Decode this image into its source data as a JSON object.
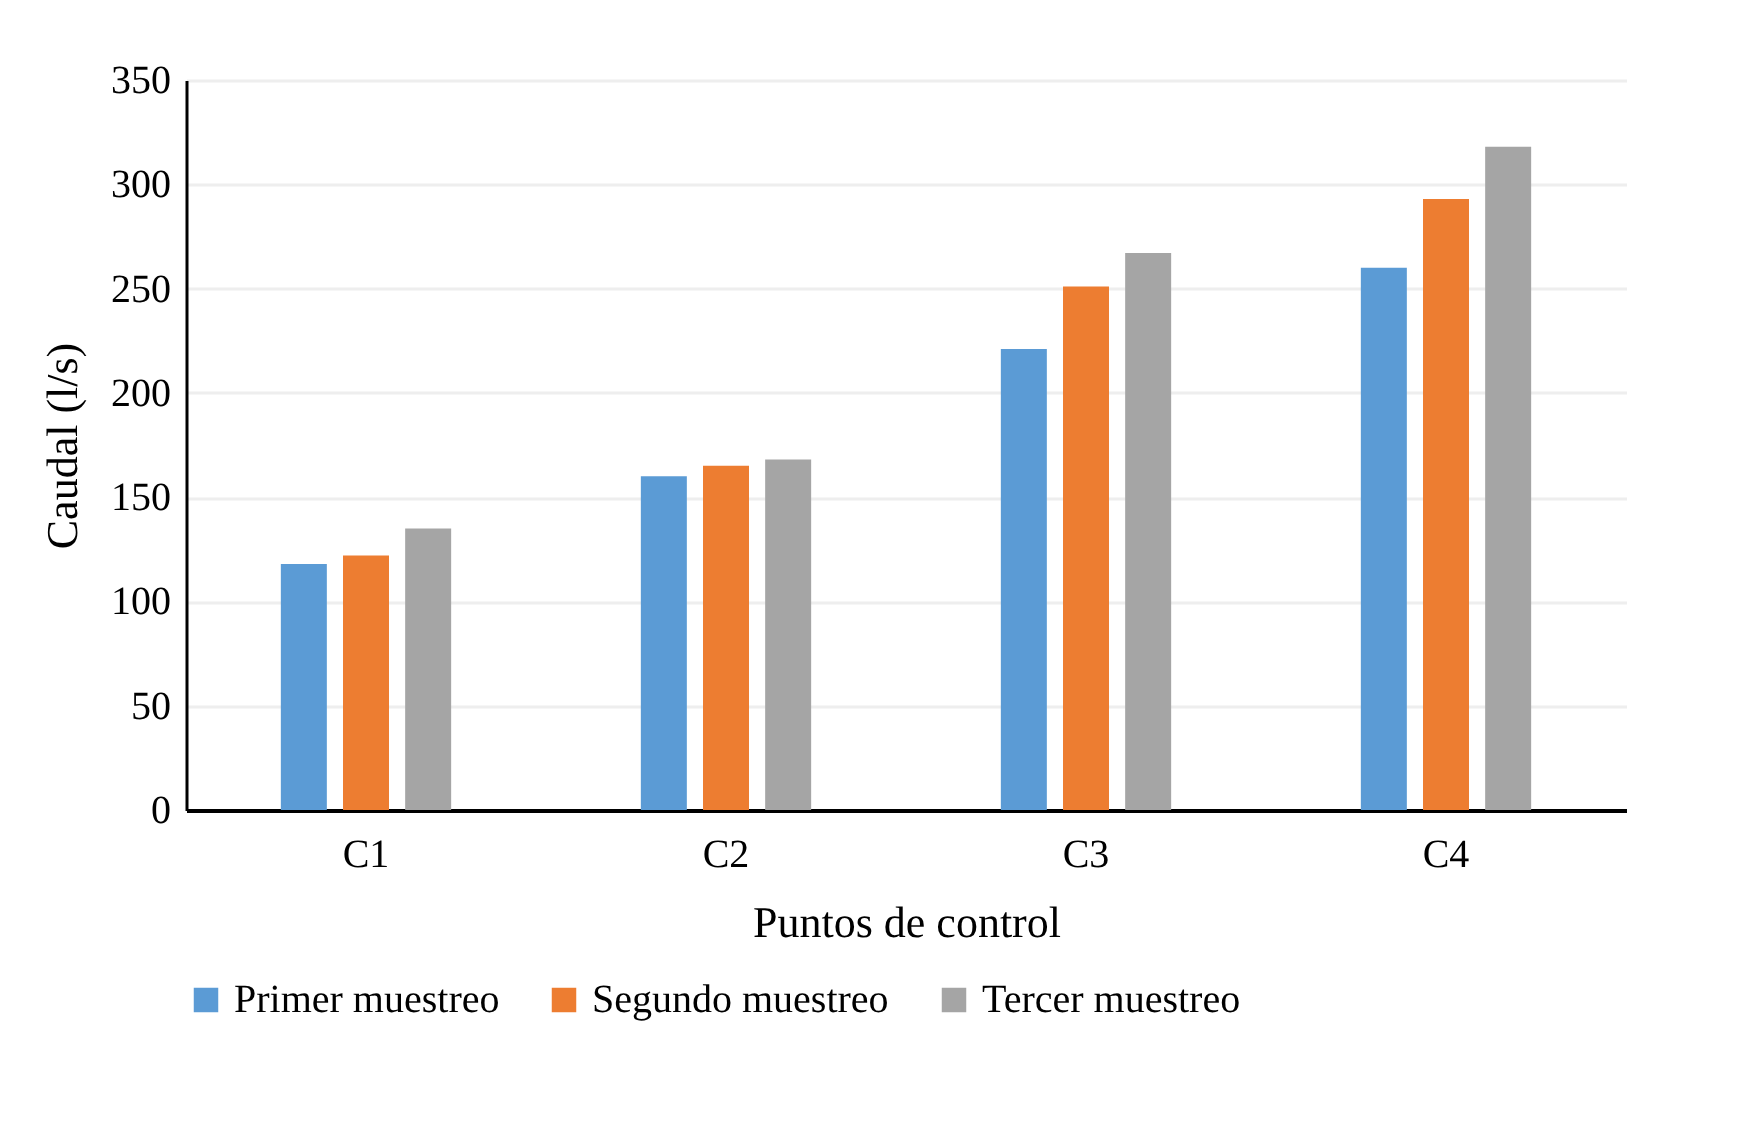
{
  "chart_data": {
    "type": "bar",
    "xlabel": "Puntos de control",
    "ylabel": "Caudal (l/s)",
    "categories": [
      "C1",
      "C2",
      "C3",
      "C4"
    ],
    "series": [
      {
        "name": "Primer muestreo",
        "color": "#5b9bd5",
        "values": [
          118,
          160,
          221,
          260
        ]
      },
      {
        "name": "Segundo muestreo",
        "color": "#ed7d31",
        "values": [
          122,
          165,
          251,
          293
        ]
      },
      {
        "name": "Tercer muestreo",
        "color": "#a5a5a5",
        "values": [
          135,
          168,
          267,
          318
        ]
      }
    ],
    "ylim": [
      0,
      350
    ],
    "yticks": [
      0,
      50,
      100,
      150,
      200,
      250,
      300,
      350
    ],
    "grid": "y",
    "legend": "bottom"
  }
}
